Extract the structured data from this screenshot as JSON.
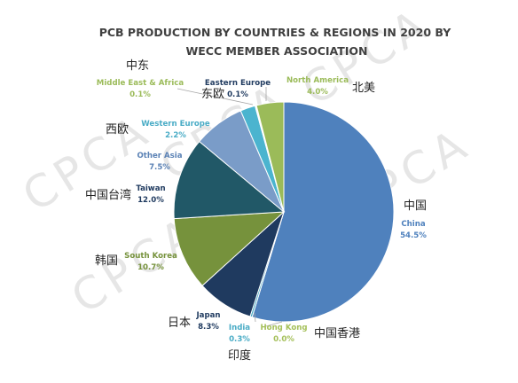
{
  "chart_data": {
    "type": "pie",
    "title_lines": [
      "PCB PRODUCTION BY COUNTRIES & REGIONS IN 2020 BY",
      "WECC MEMBER ASSOCIATION"
    ],
    "series": [
      {
        "name": "China",
        "cn": "中国",
        "value": 54.5,
        "label": "54.5%",
        "color": "#4f81bd",
        "text_color": "#4f81bd"
      },
      {
        "name": "Hong Kong",
        "cn": "中国香港",
        "value": 0.0,
        "label": "0.0%",
        "color": "#a5c05a",
        "text_color": "#a5c05a"
      },
      {
        "name": "India",
        "cn": "印度",
        "value": 0.3,
        "label": "0.3%",
        "color": "#4aacc6",
        "text_color": "#4aacc6"
      },
      {
        "name": "Japan",
        "cn": "日本",
        "value": 8.3,
        "label": "8.3%",
        "color": "#1f3a5f",
        "text_color": "#1f3a5f"
      },
      {
        "name": "South Korea",
        "cn": "韩国",
        "value": 10.7,
        "label": "10.7%",
        "color": "#76923c",
        "text_color": "#76923c"
      },
      {
        "name": "Taiwan",
        "cn": "中国台湾",
        "value": 12.0,
        "label": "12.0%",
        "color": "#215867",
        "text_color": "#1f3a5f"
      },
      {
        "name": "Other Asia",
        "cn": "",
        "value": 7.5,
        "label": "7.5%",
        "color": "#7a9cc8",
        "text_color": "#5b82b5"
      },
      {
        "name": "Western Europe",
        "cn": "西欧",
        "value": 2.2,
        "label": "2.2%",
        "color": "#4bb4cf",
        "text_color": "#4aacc6"
      },
      {
        "name": "Middle East & Africa",
        "cn": "中东",
        "value": 0.1,
        "label": "0.1%",
        "color": "#9bbb59",
        "text_color": "#9bbb59"
      },
      {
        "name": "Eastern Europe",
        "cn": "东欧",
        "value": 0.1,
        "label": "0.1%",
        "color": "#1f3a5f",
        "text_color": "#1f3a5f"
      },
      {
        "name": "North America",
        "cn": "北美",
        "value": 4.0,
        "label": "4.0%",
        "color": "#9bbb59",
        "text_color": "#9bbb59"
      }
    ],
    "watermark": "CPCA"
  }
}
